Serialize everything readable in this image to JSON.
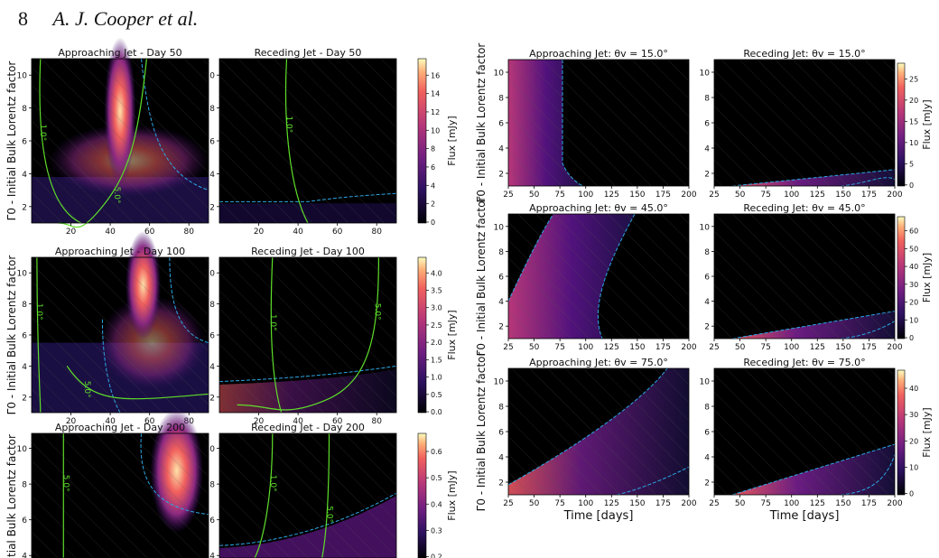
{
  "page": {
    "number": "8",
    "running_head": "A. J. Cooper et al."
  },
  "colors": {
    "green_contour": "#5ee02a",
    "blue_contour": "#2aa8e6",
    "background": "#000000"
  },
  "chart_data": [
    {
      "type": "heatmap",
      "title": "Approaching Jet - Day 50",
      "ylabel": "Γ0 - Initial Bulk Lorentz factor",
      "xlim": [
        0,
        90
      ],
      "ylim": [
        1,
        11
      ],
      "xticks": [
        "20",
        "40",
        "60",
        "80"
      ],
      "yticks": [
        "2",
        "4",
        "6",
        "8",
        "10"
      ],
      "contours": [
        "1.0°",
        "5.0°"
      ],
      "colorbar": {
        "label": "Flux [mJy]",
        "ticks": [
          "0",
          "2",
          "4",
          "6",
          "8",
          "10",
          "12",
          "14",
          "16"
        ]
      }
    },
    {
      "type": "heatmap",
      "title": "Receding Jet - Day 50",
      "xlim": [
        0,
        90
      ],
      "ylim": [
        1,
        11
      ],
      "xticks": [
        "20",
        "40",
        "60",
        "80"
      ],
      "yticks": [
        "2",
        "4",
        "6",
        "8",
        "10"
      ],
      "contours": [
        "1.0°"
      ]
    },
    {
      "type": "heatmap",
      "title": "Approaching Jet - Day 100",
      "ylabel": "Γ0 - Initial Bulk Lorentz factor",
      "xlim": [
        0,
        90
      ],
      "ylim": [
        1,
        11
      ],
      "xticks": [
        "20",
        "40",
        "60",
        "80"
      ],
      "yticks": [
        "2",
        "4",
        "6",
        "8",
        "10"
      ],
      "contours": [
        "1.0°",
        "5.0°"
      ],
      "colorbar": {
        "label": "Flux [mJy]",
        "ticks": [
          "0.0",
          "0.5",
          "1.0",
          "1.5",
          "2.0",
          "2.5",
          "3.0",
          "3.5",
          "4.0"
        ]
      }
    },
    {
      "type": "heatmap",
      "title": "Receding Jet - Day 100",
      "xlim": [
        0,
        90
      ],
      "ylim": [
        1,
        11
      ],
      "xticks": [
        "20",
        "40",
        "60",
        "80"
      ],
      "yticks": [
        "2",
        "4",
        "6",
        "8",
        "10"
      ],
      "contours": [
        "1.0°",
        "5.0°"
      ]
    },
    {
      "type": "heatmap",
      "title": "Approaching Jet - Day 200",
      "ylabel": "tial Bulk Lorentz factor",
      "xticks": [],
      "yticks": [
        "4",
        "6",
        "8",
        "10"
      ],
      "contours": [
        "5.0°"
      ],
      "colorbar": {
        "label": "Flux [mJy]",
        "ticks": [
          "0.2",
          "0.3",
          "0.4",
          "0.5",
          "0.6"
        ]
      }
    },
    {
      "type": "heatmap",
      "title": "Receding Jet - Day 200",
      "xticks": [],
      "yticks": [
        "4",
        "6",
        "8",
        "10"
      ],
      "contours": [
        "1.0°",
        "5.0°"
      ]
    },
    {
      "type": "heatmap",
      "title": "Approaching Jet: θv = 15.0°",
      "ylabel": "Γ0 - Initial Bulk Lorentz factor",
      "xlim": [
        25,
        200
      ],
      "ylim": [
        1,
        11
      ],
      "xticks": [
        "25",
        "50",
        "75",
        "100",
        "125",
        "150",
        "175",
        "200"
      ],
      "yticks": [
        "2",
        "4",
        "6",
        "8",
        "10"
      ]
    },
    {
      "type": "heatmap",
      "title": "Receding Jet: θv = 15.0°",
      "xlim": [
        25,
        200
      ],
      "ylim": [
        1,
        11
      ],
      "xticks": [
        "25",
        "50",
        "75",
        "100",
        "125",
        "150",
        "175",
        "200"
      ],
      "yticks": [
        "2",
        "4",
        "6",
        "8",
        "10"
      ],
      "colorbar": {
        "label": "Flux [mJy]",
        "ticks": [
          "0",
          "5",
          "10",
          "15",
          "20",
          "25"
        ]
      }
    },
    {
      "type": "heatmap",
      "title": "Approaching Jet: θv = 45.0°",
      "ylabel": "Γ0 - Initial Bulk Lorentz factor",
      "xlim": [
        25,
        200
      ],
      "ylim": [
        1,
        11
      ],
      "xticks": [
        "25",
        "50",
        "75",
        "100",
        "125",
        "150",
        "175",
        "200"
      ],
      "yticks": [
        "2",
        "4",
        "6",
        "8",
        "10"
      ]
    },
    {
      "type": "heatmap",
      "title": "Receding Jet: θv = 45.0°",
      "xlim": [
        25,
        200
      ],
      "ylim": [
        1,
        11
      ],
      "xticks": [
        "25",
        "50",
        "75",
        "100",
        "125",
        "150",
        "175",
        "200"
      ],
      "yticks": [
        "2",
        "4",
        "6",
        "8",
        "10"
      ],
      "colorbar": {
        "label": "Flux [mJy]",
        "ticks": [
          "0",
          "10",
          "20",
          "30",
          "40",
          "50",
          "60"
        ]
      }
    },
    {
      "type": "heatmap",
      "title": "Approaching Jet: θv = 75.0°",
      "ylabel": "Γ0 - Initial Bulk Lorentz factor",
      "xlabel": "Time [days]",
      "xlim": [
        25,
        200
      ],
      "ylim": [
        1,
        11
      ],
      "xticks": [
        "25",
        "50",
        "75",
        "100",
        "125",
        "150",
        "175",
        "200"
      ],
      "yticks": [
        "2",
        "4",
        "6",
        "8",
        "10"
      ]
    },
    {
      "type": "heatmap",
      "title": "Receding Jet: θv = 75.0°",
      "xlabel": "Time [days]",
      "xlim": [
        25,
        200
      ],
      "ylim": [
        1,
        11
      ],
      "xticks": [
        "25",
        "50",
        "75",
        "100",
        "125",
        "150",
        "175",
        "200"
      ],
      "yticks": [
        "2",
        "4",
        "6",
        "8",
        "10"
      ],
      "colorbar": {
        "label": "Flux [mJy]",
        "ticks": [
          "0",
          "10",
          "20",
          "30",
          "40"
        ]
      }
    }
  ]
}
